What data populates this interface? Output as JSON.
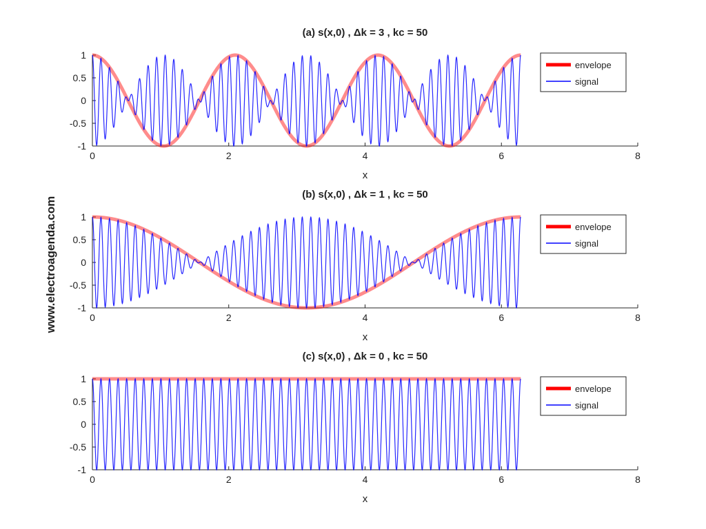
{
  "watermark": "www.electroagenda.com",
  "colors": {
    "envelope": "#ff0000",
    "signal": "#0000ff",
    "axis": "#262626"
  },
  "chart_data": [
    {
      "type": "line",
      "title": "(a) s(x,0) , Δk = 3 , kc = 50",
      "xlabel": "x",
      "ylabel": "",
      "xlim": [
        0,
        8
      ],
      "ylim": [
        -1,
        1
      ],
      "xticks": [
        "0",
        "2",
        "4",
        "6",
        "8"
      ],
      "yticks": [
        "1",
        "0.5",
        "0",
        "-0.5",
        "-1"
      ],
      "x_range": [
        0,
        6.2832
      ],
      "delta_k": 3,
      "kc": 50,
      "legend_position": "top-right",
      "series": [
        {
          "name": "envelope",
          "formula": "cos(Δk·x)"
        },
        {
          "name": "signal",
          "formula": "cos(Δk·x)·cos(kc·x)"
        }
      ]
    },
    {
      "type": "line",
      "title": "(b) s(x,0) , Δk = 1 , kc = 50",
      "xlabel": "x",
      "ylabel": "",
      "xlim": [
        0,
        8
      ],
      "ylim": [
        -1,
        1
      ],
      "xticks": [
        "0",
        "2",
        "4",
        "6",
        "8"
      ],
      "yticks": [
        "1",
        "0.5",
        "0",
        "-0.5",
        "-1"
      ],
      "x_range": [
        0,
        6.2832
      ],
      "delta_k": 1,
      "kc": 50,
      "legend_position": "top-right",
      "series": [
        {
          "name": "envelope",
          "formula": "cos(Δk·x)"
        },
        {
          "name": "signal",
          "formula": "cos(Δk·x)·cos(kc·x)"
        }
      ]
    },
    {
      "type": "line",
      "title": "(c) s(x,0) , Δk = 0 , kc = 50",
      "xlabel": "x",
      "ylabel": "",
      "xlim": [
        0,
        8
      ],
      "ylim": [
        -1,
        1
      ],
      "xticks": [
        "0",
        "2",
        "4",
        "6",
        "8"
      ],
      "yticks": [
        "1",
        "0.5",
        "0",
        "-0.5",
        "-1"
      ],
      "x_range": [
        0,
        6.2832
      ],
      "delta_k": 0,
      "kc": 50,
      "legend_position": "top-right",
      "series": [
        {
          "name": "envelope",
          "formula": "cos(Δk·x)"
        },
        {
          "name": "signal",
          "formula": "cos(Δk·x)·cos(kc·x)"
        }
      ]
    }
  ]
}
